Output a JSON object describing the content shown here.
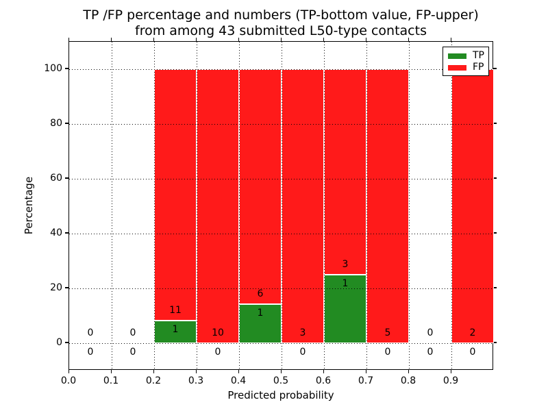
{
  "chart_data": {
    "type": "bar",
    "stacked_percentage": true,
    "title_lines": [
      "TP /FP percentage and numbers (TP-bottom value, FP-upper)",
      "from among 43 submitted L50-type contacts"
    ],
    "xlabel": "Predicted probability",
    "ylabel": "Percentage",
    "total_contacts": 43,
    "xlim": [
      0.0,
      1.0
    ],
    "ylim": [
      -10,
      110
    ],
    "grid": "dotted",
    "legend_position": "upper-right",
    "xtick_labels": [
      "0.0",
      "0.1",
      "0.2",
      "0.3",
      "0.4",
      "0.5",
      "0.6",
      "0.7",
      "0.8",
      "0.9"
    ],
    "xtick_values": [
      0.0,
      0.1,
      0.2,
      0.3,
      0.4,
      0.5,
      0.6,
      0.7,
      0.8,
      0.9
    ],
    "ytick_labels": [
      "0",
      "20",
      "40",
      "60",
      "80",
      "100"
    ],
    "ytick_values": [
      0,
      20,
      40,
      60,
      80,
      100
    ],
    "colors": {
      "tp": "#228b22",
      "fp": "#ff1a1a",
      "grid": "#000000",
      "background": "#ffffff"
    },
    "legend": [
      {
        "label": "TP",
        "color": "#228b22"
      },
      {
        "label": "FP",
        "color": "#ff1a1a"
      }
    ],
    "bins": [
      {
        "range": [
          0.0,
          0.1
        ],
        "tp": 0,
        "fp": 0
      },
      {
        "range": [
          0.1,
          0.2
        ],
        "tp": 0,
        "fp": 0
      },
      {
        "range": [
          0.2,
          0.3
        ],
        "tp": 1,
        "fp": 11
      },
      {
        "range": [
          0.3,
          0.4
        ],
        "tp": 0,
        "fp": 10
      },
      {
        "range": [
          0.4,
          0.5
        ],
        "tp": 1,
        "fp": 6
      },
      {
        "range": [
          0.5,
          0.6
        ],
        "tp": 0,
        "fp": 3
      },
      {
        "range": [
          0.6,
          0.7
        ],
        "tp": 1,
        "fp": 3
      },
      {
        "range": [
          0.7,
          0.8
        ],
        "tp": 0,
        "fp": 5
      },
      {
        "range": [
          0.8,
          0.9
        ],
        "tp": 0,
        "fp": 0
      },
      {
        "range": [
          0.9,
          1.0
        ],
        "tp": 0,
        "fp": 2
      }
    ]
  }
}
